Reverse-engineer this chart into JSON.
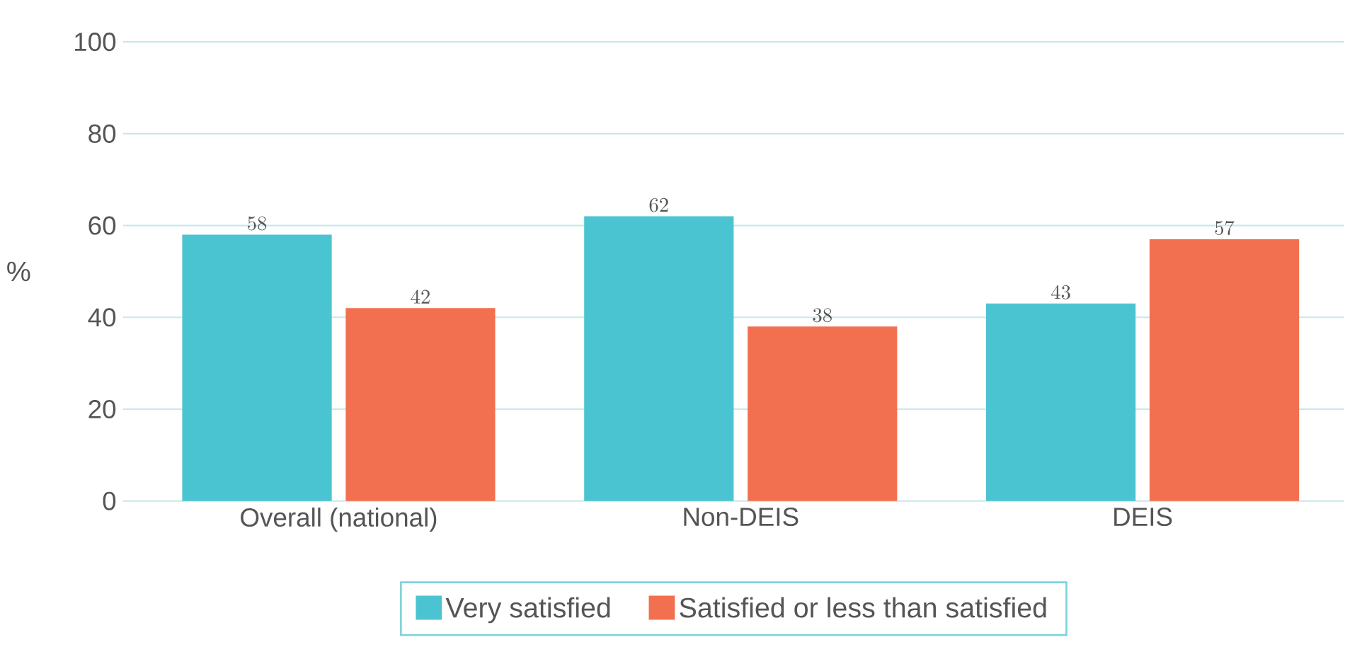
{
  "chart_data": {
    "type": "bar",
    "ylabel": "%",
    "categories": [
      "Overall (national)",
      "Non-DEIS",
      "DEIS"
    ],
    "series": [
      {
        "name": "Very satisfied",
        "color": "#4bc4d1",
        "values": [
          58,
          62,
          43
        ]
      },
      {
        "name": "Satisfied or less than satisfied",
        "color": "#f2704f",
        "values": [
          42,
          38,
          57
        ]
      }
    ],
    "ylim": [
      0,
      100
    ],
    "yticks": [
      0,
      20,
      40,
      60,
      80,
      100
    ],
    "grid": "y",
    "legend": "bottom",
    "data_labels": true
  }
}
